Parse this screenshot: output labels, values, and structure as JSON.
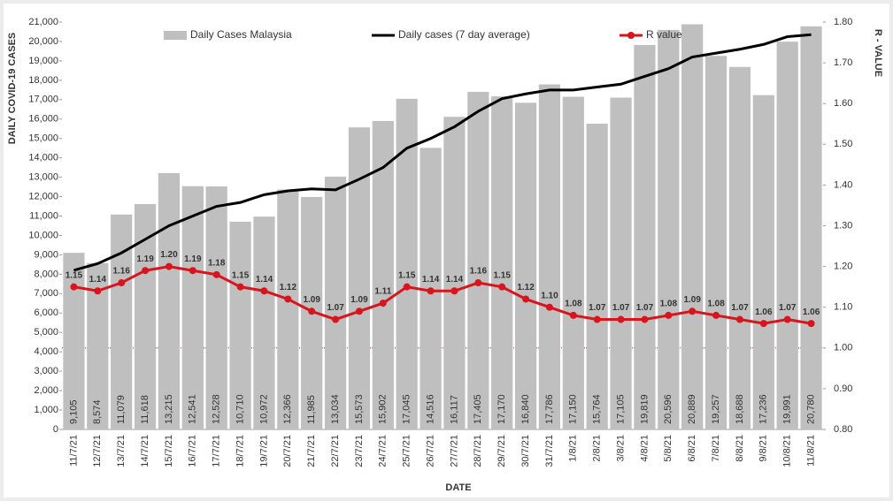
{
  "chart_data": {
    "type": "bar",
    "x_label": "DATE",
    "y_label": "DAILY COVID-19 CASES",
    "y2_label": "R - VALUE",
    "categories": [
      "11/7/21",
      "12/7/21",
      "13/7/21",
      "14/7/21",
      "15/7/21",
      "16/7/21",
      "17/7/21",
      "18/7/21",
      "19/7/21",
      "20/7/21",
      "21/7/21",
      "22/7/21",
      "23/7/21",
      "24/7/21",
      "25/7/21",
      "26/7/21",
      "27/7/21",
      "28/7/21",
      "29/7/21",
      "30/7/21",
      "31/7/21",
      "1/8/21",
      "2/8/21",
      "3/8/21",
      "4/8/21",
      "5/8/21",
      "6/8/21",
      "7/8/21",
      "8/8/21",
      "9/8/21",
      "10/8/21",
      "11/8/21"
    ],
    "series": [
      {
        "name": "Daily Cases Malaysia",
        "type": "bar",
        "color": "#bfbfbf",
        "axis": "y",
        "values": [
          9105,
          8574,
          11079,
          11618,
          13215,
          12541,
          12528,
          10710,
          10972,
          12366,
          11985,
          13034,
          15573,
          15902,
          17045,
          14516,
          16117,
          17405,
          17170,
          16840,
          17786,
          17150,
          15764,
          17105,
          19819,
          20596,
          20889,
          19257,
          18688,
          17236,
          19991,
          20780
        ],
        "value_labels": [
          "9,105",
          "8,574",
          "11,079",
          "11,618",
          "13,215",
          "12,541",
          "12,528",
          "10,710",
          "10,972",
          "12,366",
          "11,985",
          "13,034",
          "15,573",
          "15,902",
          "17,045",
          "14,516",
          "16,117",
          "17,405",
          "17,170",
          "16,840",
          "17,786",
          "17,150",
          "15,764",
          "17,105",
          "19,819",
          "20,596",
          "20,889",
          "19,257",
          "18,688",
          "17,236",
          "19,991",
          "20,780"
        ]
      },
      {
        "name": "Daily cases (7 day average)",
        "type": "line",
        "color": "#000000",
        "axis": "y",
        "values": [
          8200,
          8550,
          9100,
          9800,
          10500,
          11000,
          11500,
          11700,
          12100,
          12300,
          12400,
          12350,
          12900,
          13500,
          14500,
          15000,
          15600,
          16400,
          17050,
          17300,
          17500,
          17500,
          17650,
          17800,
          18200,
          18600,
          19200,
          19400,
          19600,
          19850,
          20250,
          20350
        ]
      },
      {
        "name": "R value",
        "type": "line",
        "color": "#d9141c",
        "axis": "y2",
        "markers": true,
        "values": [
          1.15,
          1.14,
          1.16,
          1.19,
          1.2,
          1.19,
          1.18,
          1.15,
          1.14,
          1.12,
          1.09,
          1.07,
          1.09,
          1.11,
          1.15,
          1.14,
          1.14,
          1.16,
          1.15,
          1.12,
          1.1,
          1.08,
          1.07,
          1.07,
          1.07,
          1.08,
          1.09,
          1.08,
          1.07,
          1.06,
          1.07,
          1.06
        ],
        "value_labels": [
          "1.15",
          "1.14",
          "1.16",
          "1.19",
          "1.20",
          "1.19",
          "1.18",
          "1.15",
          "1.14",
          "1.12",
          "1.09",
          "1.07",
          "1.09",
          "1.11",
          "1.15",
          "1.14",
          "1.14",
          "1.16",
          "1.15",
          "1.12",
          "1.10",
          "1.08",
          "1.07",
          "1.07",
          "1.07",
          "1.08",
          "1.09",
          "1.08",
          "1.07",
          "1.06",
          "1.07",
          "1.06"
        ]
      }
    ],
    "reference_line": {
      "axis": "y2",
      "value": 1.0,
      "color": "#d9141c"
    },
    "ylim": [
      0,
      21000
    ],
    "yticks": [
      0,
      {
        "value": 1000,
        "label": "1,000"
      },
      {
        "value": 2000,
        "label": "2,000"
      },
      {
        "value": 3000,
        "label": "3,000"
      },
      {
        "value": 4000,
        "label": "4,000"
      },
      {
        "value": 5000,
        "label": "5,000"
      },
      {
        "value": 6000,
        "label": "6,000"
      },
      {
        "value": 7000,
        "label": "7,000"
      },
      {
        "value": 8000,
        "label": "8,000"
      },
      {
        "value": 9000,
        "label": "9,000"
      },
      {
        "value": 10000,
        "label": "10,000"
      },
      {
        "value": 11000,
        "label": "11,000"
      },
      {
        "value": 12000,
        "label": "12,000"
      },
      {
        "value": 13000,
        "label": "13,000"
      },
      {
        "value": 14000,
        "label": "14,000"
      },
      {
        "value": 15000,
        "label": "15,000"
      },
      {
        "value": 16000,
        "label": "16,000"
      },
      {
        "value": 17000,
        "label": "17,000"
      },
      {
        "value": 18000,
        "label": "18,000"
      },
      {
        "value": 19000,
        "label": "19,000"
      },
      {
        "value": 20000,
        "label": "20,000"
      },
      {
        "value": 21000,
        "label": "21,000"
      }
    ],
    "y2lim": [
      0.8,
      1.8
    ],
    "y2ticks": [
      {
        "value": 0.8,
        "label": "0.80"
      },
      {
        "value": 0.9,
        "label": "0.90"
      },
      {
        "value": 1.0,
        "label": "1.00"
      },
      {
        "value": 1.1,
        "label": "1.10"
      },
      {
        "value": 1.2,
        "label": "1.20"
      },
      {
        "value": 1.3,
        "label": "1.30"
      },
      {
        "value": 1.4,
        "label": "1.40"
      },
      {
        "value": 1.5,
        "label": "1.50"
      },
      {
        "value": 1.6,
        "label": "1.60"
      },
      {
        "value": 1.7,
        "label": "1.70"
      },
      {
        "value": 1.8,
        "label": "1.80"
      }
    ],
    "legend": "top",
    "grid": false
  }
}
